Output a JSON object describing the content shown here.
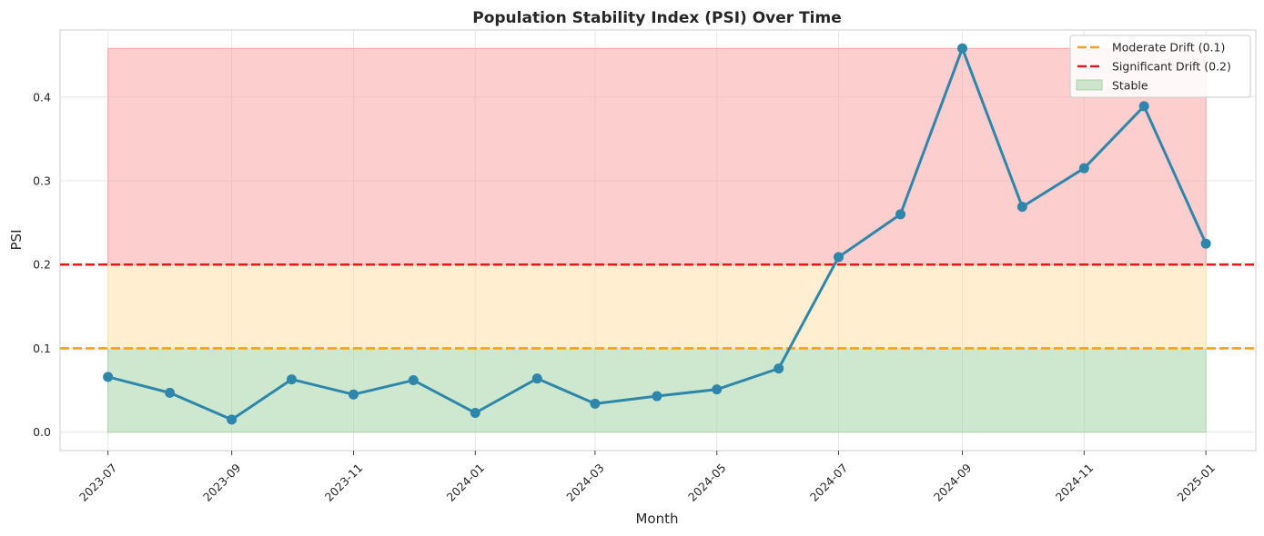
{
  "chart_data": {
    "type": "line",
    "title": "Population Stability Index (PSI) Over Time",
    "xlabel": "Month",
    "ylabel": "PSI",
    "ylim": [
      -0.022,
      0.48
    ],
    "xlim": [
      "2023-06-07",
      "2025-01-26"
    ],
    "grid": true,
    "legend_position": "top-right",
    "y_ticks": [
      0.0,
      0.1,
      0.2,
      0.3,
      0.4
    ],
    "y_tick_labels": [
      "0.0",
      "0.1",
      "0.2",
      "0.3",
      "0.4"
    ],
    "x_ticks": [
      "2023-07-01",
      "2023-09-01",
      "2023-11-01",
      "2024-01-01",
      "2024-03-01",
      "2024-05-01",
      "2024-07-01",
      "2024-09-01",
      "2024-11-01",
      "2025-01-01"
    ],
    "x_tick_labels": [
      "2023-07",
      "2023-09",
      "2023-11",
      "2024-01",
      "2024-03",
      "2024-05",
      "2024-07",
      "2024-09",
      "2024-11",
      "2025-01"
    ],
    "series": [
      {
        "color": "#2e86ab",
        "x": [
          "2023-07-01",
          "2023-08-01",
          "2023-09-01",
          "2023-10-01",
          "2023-11-01",
          "2023-12-01",
          "2024-01-01",
          "2024-02-01",
          "2024-03-01",
          "2024-04-01",
          "2024-05-01",
          "2024-06-01",
          "2024-07-01",
          "2024-08-01",
          "2024-09-01",
          "2024-10-01",
          "2024-11-01",
          "2024-12-01",
          "2025-01-01"
        ],
        "values": [
          0.066,
          0.047,
          0.015,
          0.063,
          0.045,
          0.062,
          0.023,
          0.064,
          0.034,
          0.043,
          0.051,
          0.076,
          0.209,
          0.26,
          0.458,
          0.269,
          0.315,
          0.389,
          0.225
        ]
      }
    ],
    "thresholds": [
      {
        "name": "Moderate Drift (0.1)",
        "value": 0.1,
        "color": "#f5a31a"
      },
      {
        "name": "Significant Drift (0.2)",
        "value": 0.2,
        "color": "#e31a1c"
      }
    ],
    "bands": [
      {
        "name": "Stable",
        "from": 0.0,
        "to": 0.1,
        "color": "#a5d6a7",
        "x_from": "2023-07-01",
        "x_to": "2025-01-01"
      },
      {
        "name": "",
        "from": 0.1,
        "to": 0.2,
        "color": "#ffe0a8",
        "x_from": "2023-07-01",
        "x_to": "2025-01-01"
      },
      {
        "name": "",
        "from": 0.2,
        "to": 0.458,
        "color": "#fca5a5",
        "x_from": "2023-07-01",
        "x_to": "2025-01-01"
      }
    ]
  }
}
